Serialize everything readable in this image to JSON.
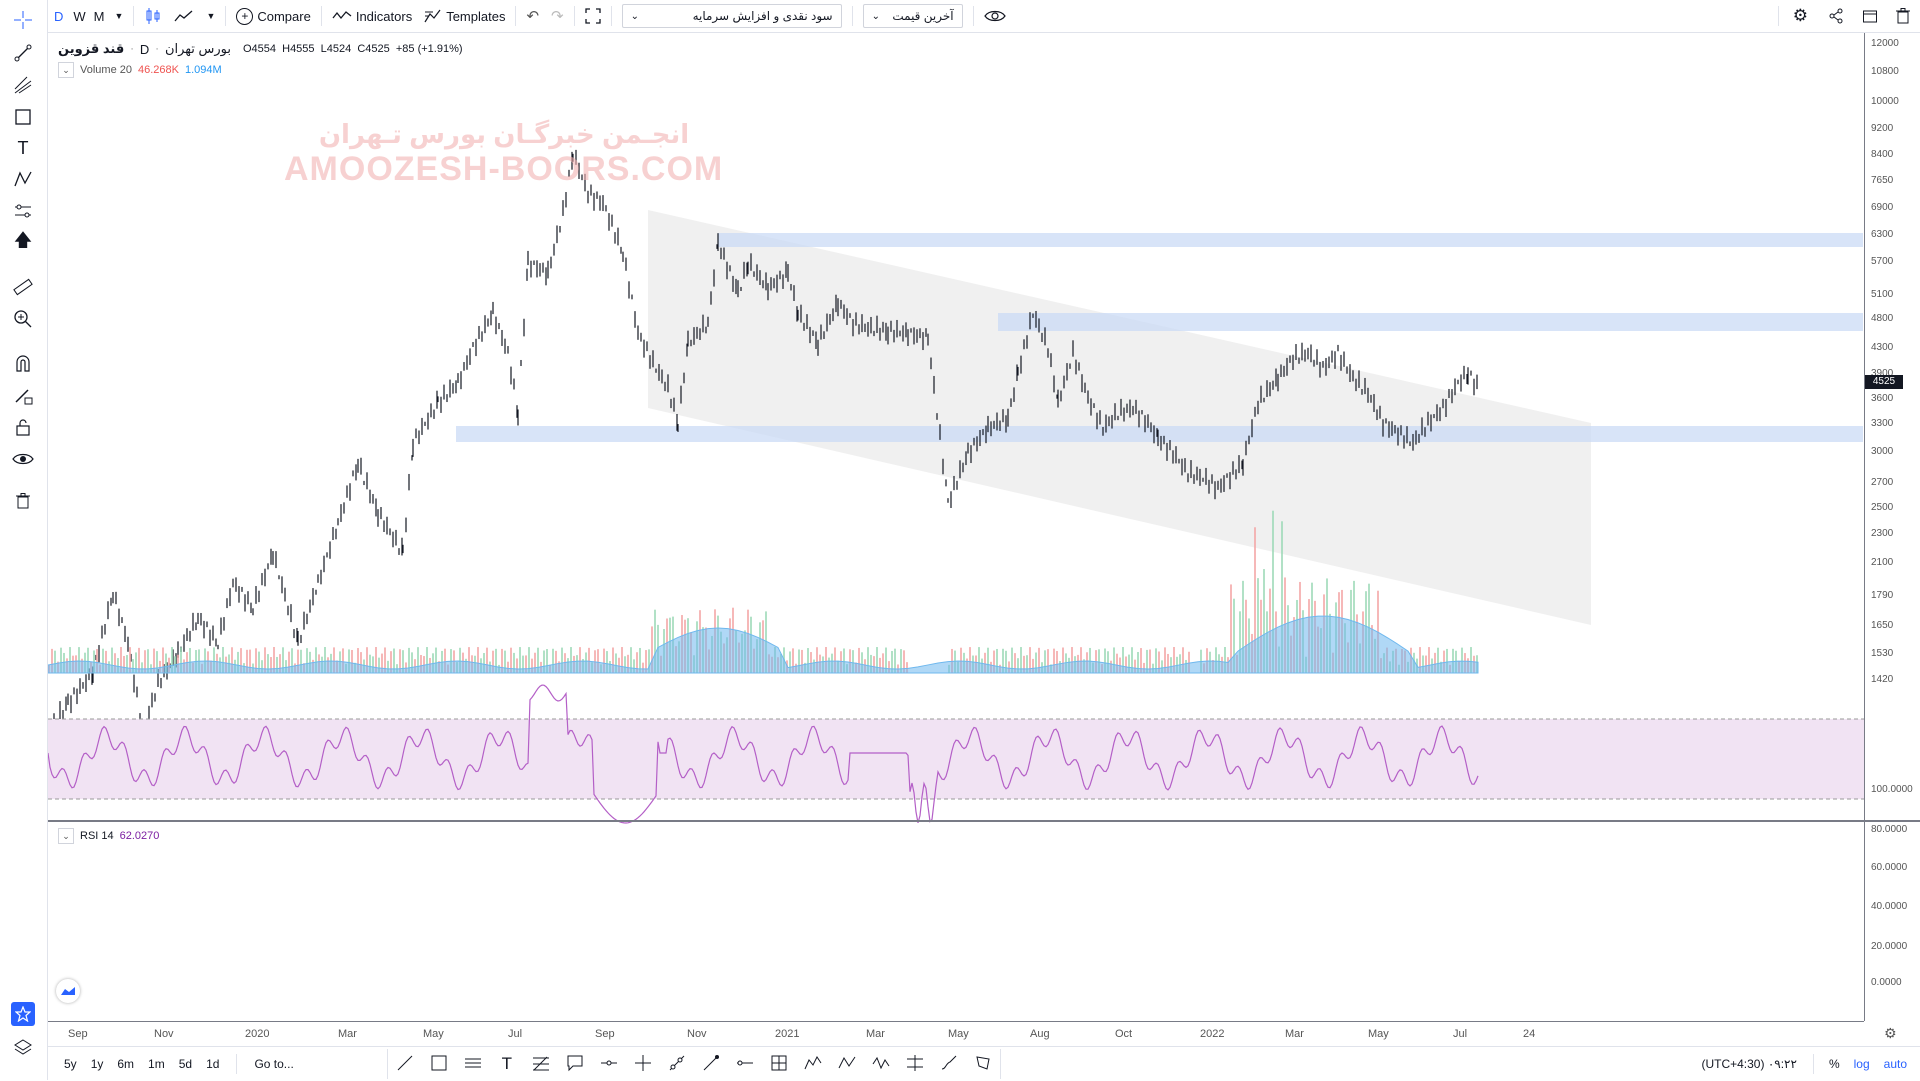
{
  "toolbar": {
    "intervals": [
      "D",
      "W",
      "M"
    ],
    "compare_label": "Compare",
    "indicators_label": "Indicators",
    "templates_label": "Templates",
    "dropdown1": "سود نقدی و افزایش سرمایه",
    "dropdown2": "آخرین قیمت"
  },
  "legend": {
    "symbol": "قند قزوین",
    "exchange": "بورس تهران",
    "interval": "D",
    "ohlc": "O4554  H4555  L4524  C4525  +85 (+1.91%)",
    "volume_name": "Volume 20",
    "volume_val1": "46.268K",
    "volume_val2": "1.094M",
    "rsi_name": "RSI 14",
    "rsi_val": "62.0270"
  },
  "watermark": {
    "line1": "انجـمن خبرگـان بورس تـهران",
    "line2": "AMOOZESH-BOORS.COM"
  },
  "price_axis": [
    "12000",
    "10800",
    "10000",
    "9200",
    "8400",
    "7650",
    "6900",
    "6300",
    "5700",
    "5100",
    "4800",
    "4300",
    "3900",
    "3600",
    "3300",
    "3000",
    "2700",
    "2500",
    "2300",
    "2100",
    "1790",
    "1650",
    "1530",
    "1420"
  ],
  "current_price": "4525",
  "rsi_axis": [
    "100.0000",
    "80.0000",
    "60.0000",
    "40.0000",
    "20.0000",
    "0.0000"
  ],
  "time_axis": [
    "Sep",
    "Nov",
    "2020",
    "Mar",
    "May",
    "Jul",
    "Sep",
    "Nov",
    "2021",
    "Mar",
    "May",
    "Aug",
    "Oct",
    "2022",
    "Mar",
    "May",
    "Jul",
    "24"
  ],
  "bottom": {
    "ranges": [
      "5y",
      "1y",
      "6m",
      "1m",
      "5d",
      "1d"
    ],
    "goto": "Go to...",
    "clock": "۰۹:۲۲ (UTC+4:30)",
    "pct": "%",
    "log": "log",
    "auto": "auto"
  },
  "colors": {
    "accent": "#2962ff",
    "zone": "#c7d8f5",
    "rsi": "#b45fc7",
    "rsi_band": "#f1e3f3",
    "up_vol": "#9dd9b8",
    "down_vol": "#f4a6a6",
    "vol_ma": "#6fb8ee"
  }
}
